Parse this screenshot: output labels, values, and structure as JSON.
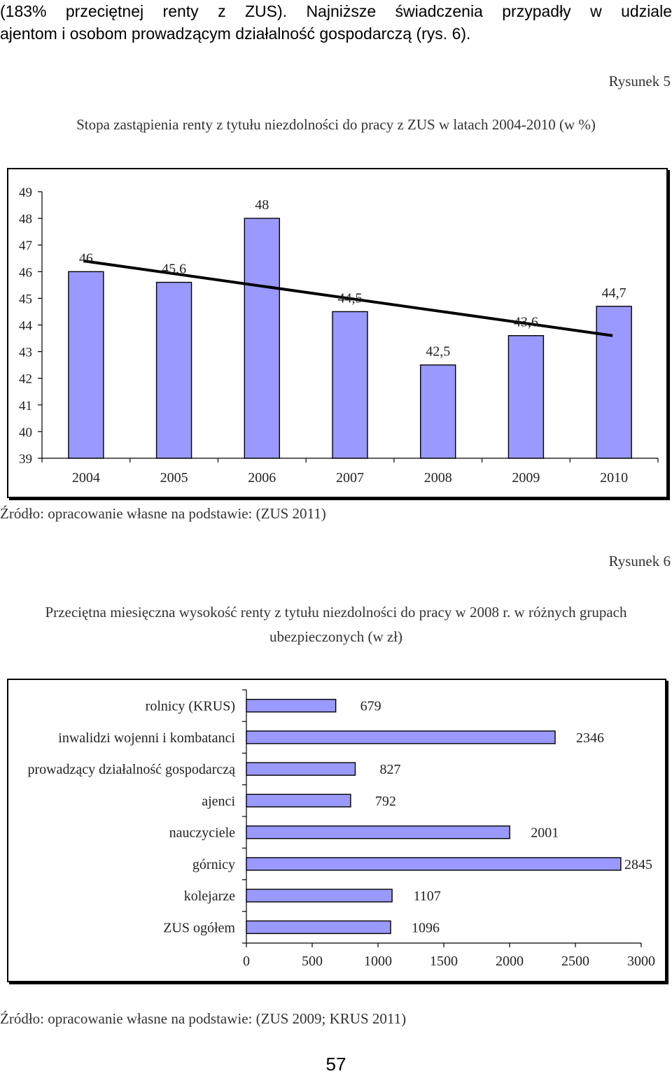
{
  "intro": {
    "line1": "(183% przeciętnej renty z ZUS). Najniższe świadczenia przypadły w udziale",
    "line2": "ajentom i osobom prowadzącym działalność gospodarczą (rys. 6)."
  },
  "figure5": {
    "label": "Rysunek 5",
    "title": "Stopa zastąpienia renty z tytułu niezdolności do pracy z ZUS w latach 2004-2010 (w %)",
    "source": "Źródło: opracowanie własne na podstawie: (ZUS 2011)"
  },
  "figure6": {
    "label": "Rysunek 6",
    "title_line1": "Przeciętna miesięczna wysokość renty z tytułu niezdolności do pracy w 2008 r. w różnych grupach",
    "title_line2": "ubezpieczonych (w zł)",
    "source": "Źródło: opracowanie własne na podstawie: (ZUS 2009; KRUS 2011)"
  },
  "page_number": "57",
  "colors": {
    "bar": "#9999ff",
    "axis": "#000000",
    "trend": "#000000"
  },
  "chart_data": [
    {
      "type": "bar",
      "title": "Stopa zastąpienia renty z tytułu niezdolności do pracy z ZUS w latach 2004-2010 (w %)",
      "categories": [
        "2004",
        "2005",
        "2006",
        "2007",
        "2008",
        "2009",
        "2010"
      ],
      "values": [
        46,
        45.6,
        48,
        44.5,
        42.5,
        43.6,
        44.7
      ],
      "value_labels": [
        "46",
        "45,6",
        "48",
        "44,5",
        "42,5",
        "43,6",
        "44,7"
      ],
      "ylim": [
        39,
        49
      ],
      "yticks": [
        39,
        40,
        41,
        42,
        43,
        44,
        45,
        46,
        47,
        48,
        49
      ],
      "trendline": {
        "type": "linear",
        "start": 46.4,
        "end": 43.6
      },
      "grid": false,
      "legend": "none"
    },
    {
      "type": "bar",
      "orientation": "horizontal",
      "title": "Przeciętna miesięczna wysokość renty z tytułu niezdolności do pracy w 2008 r. w różnych grupach ubezpieczonych (w zł)",
      "categories": [
        "rolnicy (KRUS)",
        "inwalidzi wojenni i kombatanci",
        "prowadzący działalność gospodarczą",
        "ajenci",
        "nauczyciele",
        "górnicy",
        "kolejarze",
        "ZUS ogółem"
      ],
      "values": [
        679,
        2346,
        827,
        792,
        2001,
        2845,
        1107,
        1096
      ],
      "value_labels": [
        "679",
        "2346",
        "827",
        "792",
        "2001",
        "2845",
        "1107",
        "1096"
      ],
      "xlim": [
        0,
        3000
      ],
      "xticks": [
        0,
        500,
        1000,
        1500,
        2000,
        2500,
        3000
      ],
      "grid": false,
      "legend": "none"
    }
  ]
}
